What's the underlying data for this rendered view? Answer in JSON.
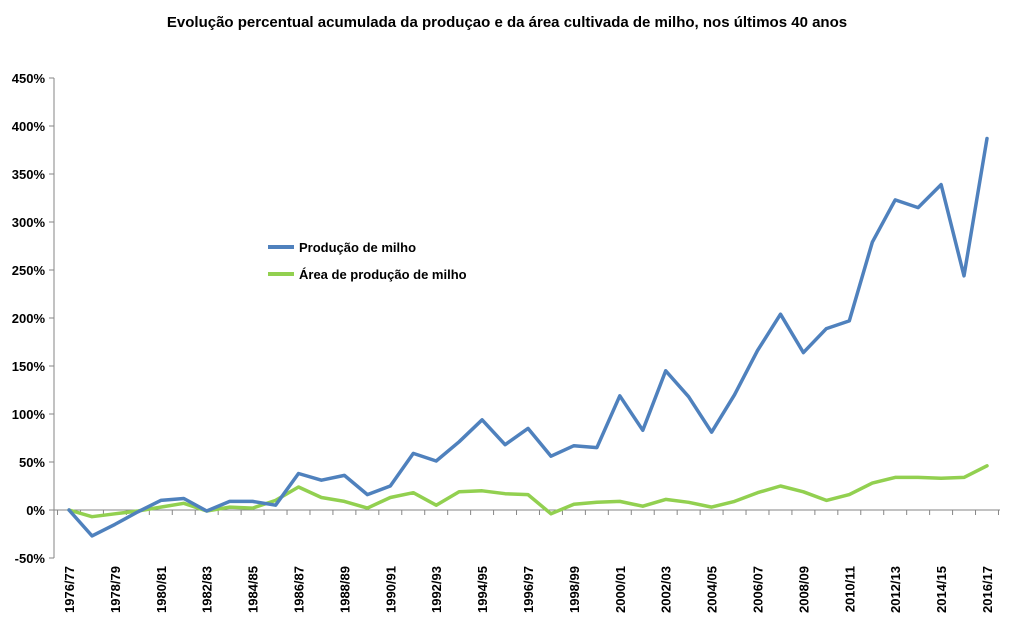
{
  "chart_data": {
    "type": "line",
    "title": "Evolução percentual acumulada da produçao e da área cultivada de milho, nos últimos 40 anos",
    "xlabel": "",
    "ylabel": "",
    "ylim": [
      -50,
      450
    ],
    "y_ticks": [
      -50,
      0,
      50,
      100,
      150,
      200,
      250,
      300,
      350,
      400,
      450
    ],
    "y_tick_labels": [
      "-50%",
      "0%",
      "50%",
      "100%",
      "150%",
      "200%",
      "250%",
      "300%",
      "350%",
      "400%",
      "450%"
    ],
    "grid": false,
    "legend": "center-left",
    "categories": [
      "1976/77",
      "1977/78",
      "1978/79",
      "1979/80",
      "1980/81",
      "1981/82",
      "1982/83",
      "1983/84",
      "1984/85",
      "1985/86",
      "1986/87",
      "1987/88",
      "1988/89",
      "1989/90",
      "1990/91",
      "1991/92",
      "1992/93",
      "1993/94",
      "1994/95",
      "1995/96",
      "1996/97",
      "1997/98",
      "1998/99",
      "1999/00",
      "2000/01",
      "2001/02",
      "2002/03",
      "2003/04",
      "2004/05",
      "2005/06",
      "2006/07",
      "2007/08",
      "2008/09",
      "2009/10",
      "2010/11",
      "2011/12",
      "2012/13",
      "2013/14",
      "2014/15",
      "2015/16",
      "2016/17"
    ],
    "category_labels_shown": [
      "1976/77",
      "1978/79",
      "1980/81",
      "1982/83",
      "1984/85",
      "1986/87",
      "1988/89",
      "1990/91",
      "1992/93",
      "1994/95",
      "1996/97",
      "1998/99",
      "2000/01",
      "2002/03",
      "2004/05",
      "2006/07",
      "2008/09",
      "2010/11",
      "2012/13",
      "2014/15",
      "2016/17"
    ],
    "series": [
      {
        "name": "Produção de milho",
        "color": "#4F81BD",
        "values": [
          0,
          -27,
          -15,
          -2,
          10,
          12,
          -1,
          9,
          9,
          5,
          38,
          31,
          36,
          16,
          25,
          59,
          51,
          71,
          94,
          68,
          85,
          56,
          67,
          65,
          119,
          83,
          145,
          118,
          81,
          120,
          166,
          204,
          164,
          189,
          197,
          279,
          323,
          315,
          339,
          244,
          387
        ]
      },
      {
        "name": "Área de produção de milho",
        "color": "#92D050",
        "values": [
          0,
          -7,
          -4,
          -1,
          3,
          7,
          -1,
          3,
          2,
          10,
          24,
          13,
          9,
          2,
          13,
          18,
          5,
          19,
          20,
          17,
          16,
          -4,
          6,
          8,
          9,
          4,
          11,
          8,
          3,
          9,
          18,
          25,
          19,
          10,
          16,
          28,
          34,
          34,
          33,
          34,
          46
        ]
      }
    ]
  }
}
